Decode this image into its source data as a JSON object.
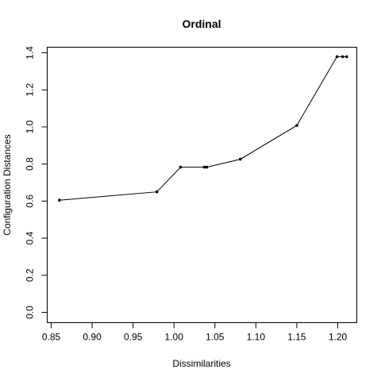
{
  "chart_data": {
    "type": "scatter",
    "title": "Ordinal",
    "xlabel": "Dissimilarities",
    "ylabel": "Configuration Distances",
    "xlim": [
      0.85,
      1.21
    ],
    "ylim": [
      0.0,
      1.4
    ],
    "xticks": [
      "0.85",
      "0.90",
      "0.95",
      "1.00",
      "1.05",
      "1.10",
      "1.15",
      "1.20"
    ],
    "yticks": [
      "0.0",
      "0.2",
      "0.4",
      "0.6",
      "0.8",
      "1.0",
      "1.2",
      "1.4"
    ],
    "points": [
      {
        "x": 0.86,
        "y": 0.605
      },
      {
        "x": 0.979,
        "y": 0.65
      },
      {
        "x": 1.008,
        "y": 0.783
      },
      {
        "x": 1.037,
        "y": 0.783
      },
      {
        "x": 1.04,
        "y": 0.783
      },
      {
        "x": 1.081,
        "y": 0.826
      },
      {
        "x": 1.15,
        "y": 1.008
      },
      {
        "x": 1.199,
        "y": 1.379
      },
      {
        "x": 1.206,
        "y": 1.379
      },
      {
        "x": 1.211,
        "y": 1.379
      }
    ],
    "fit_line": [
      {
        "x": 0.86,
        "y": 0.605
      },
      {
        "x": 0.979,
        "y": 0.65
      },
      {
        "x": 1.008,
        "y": 0.783
      },
      {
        "x": 1.04,
        "y": 0.783
      },
      {
        "x": 1.081,
        "y": 0.826
      },
      {
        "x": 1.15,
        "y": 1.008
      },
      {
        "x": 1.199,
        "y": 1.379
      },
      {
        "x": 1.211,
        "y": 1.379
      }
    ],
    "grid": false,
    "legend": "none"
  }
}
